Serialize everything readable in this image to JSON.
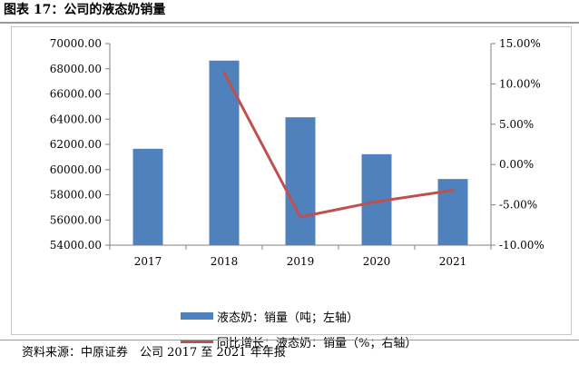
{
  "figure": {
    "title": "图表 17：公司的液态奶销量",
    "source": "资料来源：中原证券　公司 2017 至 2021 年年报"
  },
  "chart_data": {
    "type": "bar",
    "categories": [
      "2017",
      "2018",
      "2019",
      "2020",
      "2021"
    ],
    "series": [
      {
        "name": "液态奶：销量（吨；左轴）",
        "type": "bar",
        "axis": "left",
        "color": "#4f81bd",
        "values": [
          61650,
          68650,
          64150,
          61220,
          59250
        ]
      },
      {
        "name": "同比增长：液态奶：销量（%；右轴）",
        "type": "line",
        "axis": "right",
        "color": "#c0504d",
        "values": [
          null,
          11.4,
          -6.5,
          -4.6,
          -3.2
        ]
      }
    ],
    "y_left": {
      "min": 54000,
      "max": 70000,
      "step": 2000,
      "tick_labels": [
        "54000.00",
        "56000.00",
        "58000.00",
        "60000.00",
        "62000.00",
        "64000.00",
        "66000.00",
        "68000.00",
        "70000.00"
      ]
    },
    "y_right": {
      "min": -10,
      "max": 15,
      "step": 5,
      "tick_labels": [
        "-10.00%",
        "-5.00%",
        "0.00%",
        "5.00%",
        "10.00%",
        "15.00%"
      ]
    },
    "grid": false,
    "legend_position": "bottom"
  }
}
